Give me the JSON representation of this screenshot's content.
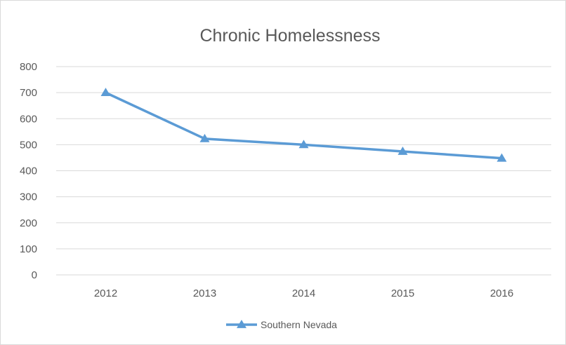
{
  "chart_data": {
    "type": "line",
    "title": "Chronic Homelessness",
    "xlabel": "",
    "ylabel": "",
    "categories": [
      "2012",
      "2013",
      "2014",
      "2015",
      "2016"
    ],
    "series": [
      {
        "name": "Southern Nevada",
        "values": [
          700,
          523,
          500,
          474,
          448
        ],
        "color": "#5b9bd5",
        "marker": "triangle"
      }
    ],
    "ylim": [
      0,
      800
    ],
    "yticks": [
      0,
      100,
      200,
      300,
      400,
      500,
      600,
      700,
      800
    ],
    "grid": true,
    "legend_position": "bottom"
  }
}
